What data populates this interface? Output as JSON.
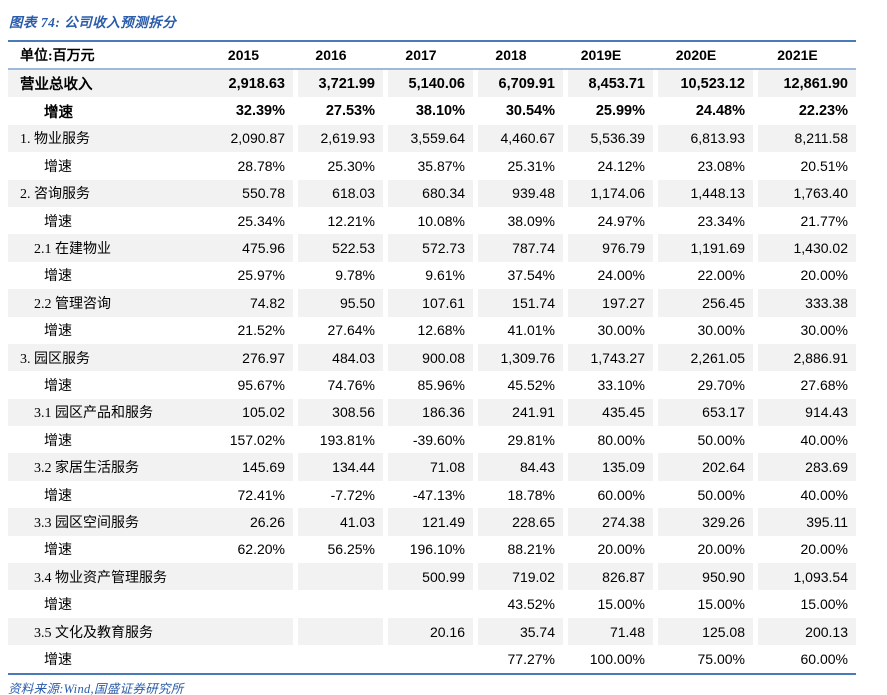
{
  "title": "图表 74: 公司收入预测拆分",
  "source": "资料来源:Wind,国盛证券研究所",
  "colors": {
    "accent_blue": "#2a5caa",
    "rule_dark_blue": "#4a7ab8",
    "rule_light_blue": "#9fb9da",
    "stripe_grey": "#f2f2f2",
    "text": "#000000"
  },
  "chart_data": {
    "type": "table",
    "unit_label": "单位:百万元",
    "columns": [
      "2015",
      "2016",
      "2017",
      "2018",
      "2019E",
      "2020E",
      "2021E"
    ],
    "rows": [
      {
        "label": "营业总收入",
        "role": "total",
        "values": [
          "2,918.63",
          "3,721.99",
          "5,140.06",
          "6,709.91",
          "8,453.71",
          "10,523.12",
          "12,861.90"
        ]
      },
      {
        "label": "增速",
        "role": "growth_total",
        "values": [
          "32.39%",
          "27.53%",
          "38.10%",
          "30.54%",
          "25.99%",
          "24.48%",
          "22.23%"
        ]
      },
      {
        "label": "1. 物业服务",
        "role": "section",
        "values": [
          "2,090.87",
          "2,619.93",
          "3,559.64",
          "4,460.67",
          "5,536.39",
          "6,813.93",
          "8,211.58"
        ]
      },
      {
        "label": "增速",
        "role": "growth",
        "values": [
          "28.78%",
          "25.30%",
          "35.87%",
          "25.31%",
          "24.12%",
          "23.08%",
          "20.51%"
        ]
      },
      {
        "label": "2. 咨询服务",
        "role": "section",
        "values": [
          "550.78",
          "618.03",
          "680.34",
          "939.48",
          "1,174.06",
          "1,448.13",
          "1,763.40"
        ]
      },
      {
        "label": "增速",
        "role": "growth",
        "values": [
          "25.34%",
          "12.21%",
          "10.08%",
          "38.09%",
          "24.97%",
          "23.34%",
          "21.77%"
        ]
      },
      {
        "label": "2.1 在建物业",
        "role": "subsection",
        "values": [
          "475.96",
          "522.53",
          "572.73",
          "787.74",
          "976.79",
          "1,191.69",
          "1,430.02"
        ]
      },
      {
        "label": "增速",
        "role": "growth",
        "values": [
          "25.97%",
          "9.78%",
          "9.61%",
          "37.54%",
          "24.00%",
          "22.00%",
          "20.00%"
        ]
      },
      {
        "label": "2.2 管理咨询",
        "role": "subsection",
        "values": [
          "74.82",
          "95.50",
          "107.61",
          "151.74",
          "197.27",
          "256.45",
          "333.38"
        ]
      },
      {
        "label": "增速",
        "role": "growth",
        "values": [
          "21.52%",
          "27.64%",
          "12.68%",
          "41.01%",
          "30.00%",
          "30.00%",
          "30.00%"
        ]
      },
      {
        "label": "3. 园区服务",
        "role": "section",
        "values": [
          "276.97",
          "484.03",
          "900.08",
          "1,309.76",
          "1,743.27",
          "2,261.05",
          "2,886.91"
        ]
      },
      {
        "label": "增速",
        "role": "growth",
        "values": [
          "95.67%",
          "74.76%",
          "85.96%",
          "45.52%",
          "33.10%",
          "29.70%",
          "27.68%"
        ]
      },
      {
        "label": "3.1 园区产品和服务",
        "role": "subsection",
        "values": [
          "105.02",
          "308.56",
          "186.36",
          "241.91",
          "435.45",
          "653.17",
          "914.43"
        ]
      },
      {
        "label": "增速",
        "role": "growth",
        "values": [
          "157.02%",
          "193.81%",
          "-39.60%",
          "29.81%",
          "80.00%",
          "50.00%",
          "40.00%"
        ]
      },
      {
        "label": "3.2 家居生活服务",
        "role": "subsection",
        "values": [
          "145.69",
          "134.44",
          "71.08",
          "84.43",
          "135.09",
          "202.64",
          "283.69"
        ]
      },
      {
        "label": "增速",
        "role": "growth",
        "values": [
          "72.41%",
          "-7.72%",
          "-47.13%",
          "18.78%",
          "60.00%",
          "50.00%",
          "40.00%"
        ]
      },
      {
        "label": "3.3 园区空间服务",
        "role": "subsection",
        "values": [
          "26.26",
          "41.03",
          "121.49",
          "228.65",
          "274.38",
          "329.26",
          "395.11"
        ]
      },
      {
        "label": "增速",
        "role": "growth",
        "values": [
          "62.20%",
          "56.25%",
          "196.10%",
          "88.21%",
          "20.00%",
          "20.00%",
          "20.00%"
        ]
      },
      {
        "label": "3.4 物业资产管理服务",
        "role": "subsection",
        "values": [
          "",
          "",
          "500.99",
          "719.02",
          "826.87",
          "950.90",
          "1,093.54"
        ]
      },
      {
        "label": "增速",
        "role": "growth",
        "values": [
          "",
          "",
          "",
          "43.52%",
          "15.00%",
          "15.00%",
          "15.00%"
        ]
      },
      {
        "label": "3.5 文化及教育服务",
        "role": "subsection",
        "values": [
          "",
          "",
          "20.16",
          "35.74",
          "71.48",
          "125.08",
          "200.13"
        ]
      },
      {
        "label": "增速",
        "role": "growth",
        "values": [
          "",
          "",
          "",
          "77.27%",
          "100.00%",
          "75.00%",
          "60.00%"
        ]
      }
    ]
  }
}
